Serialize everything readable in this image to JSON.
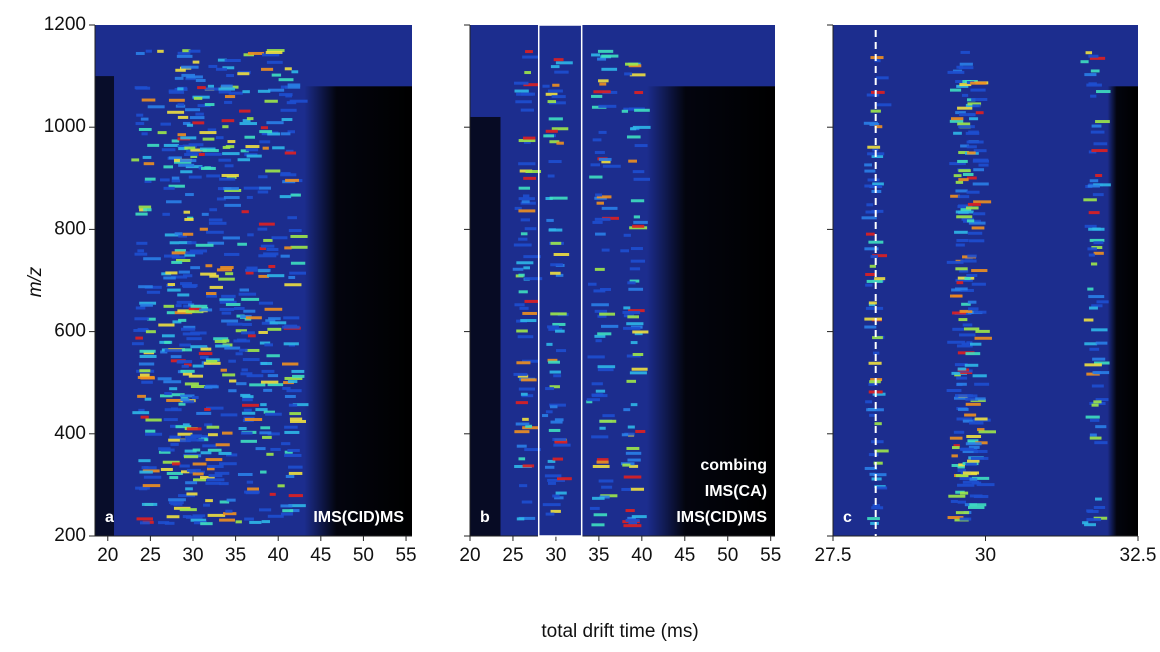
{
  "axis_titles": {
    "x": "total drift time (ms)",
    "y": "m/z"
  },
  "chart_data": [
    {
      "type": "heatmap",
      "panel_label": "a",
      "annotation": [
        "IMS(CID)MS"
      ],
      "xlim": [
        18.5,
        55.7
      ],
      "xticks": [
        20,
        25,
        30,
        35,
        40,
        45,
        50,
        55
      ],
      "ylim": [
        200,
        1200
      ],
      "yticks": [
        200,
        400,
        600,
        800,
        1000,
        1200
      ],
      "ytick_labels": true
    },
    {
      "type": "heatmap",
      "panel_label": "b",
      "annotation": [
        "combing",
        "IMS(CA)",
        "IMS(CID)MS"
      ],
      "xlim": [
        20,
        55.5
      ],
      "xticks": [
        20,
        25,
        30,
        35,
        40,
        45,
        50,
        55
      ],
      "ylim": [
        200,
        1200
      ],
      "yticks": [
        200,
        400,
        600,
        800,
        1000,
        1200
      ],
      "ytick_labels": false,
      "highlight_range": [
        28,
        33
      ]
    },
    {
      "type": "heatmap",
      "panel_label": "c",
      "annotation": [],
      "xlim": [
        27.5,
        32.5
      ],
      "xticks": [
        27.5,
        30,
        32.5
      ],
      "ylim": [
        200,
        1200
      ],
      "yticks": [
        200,
        400,
        600,
        800,
        1000,
        1200
      ],
      "ytick_labels": false,
      "marker_x": 28.2
    }
  ]
}
